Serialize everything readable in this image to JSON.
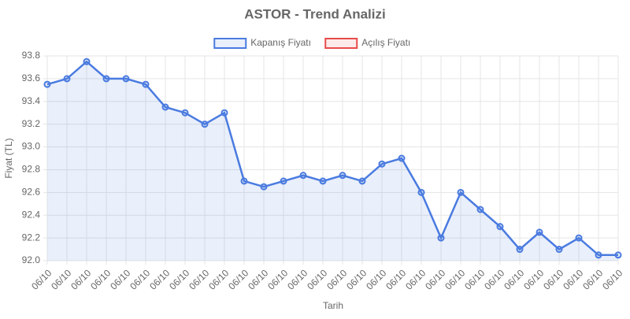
{
  "chart_data": {
    "type": "line",
    "title": "ASTOR - Trend Analizi",
    "x_label": "Tarih",
    "y_label": "Fiyat (TL)",
    "categories": [
      "06/10",
      "06/10",
      "06/10",
      "06/10",
      "06/10",
      "06/10",
      "06/10",
      "06/10",
      "06/10",
      "06/10",
      "06/10",
      "06/10",
      "06/10",
      "06/10",
      "06/10",
      "06/10",
      "06/10",
      "06/10",
      "06/10",
      "06/10",
      "06/10",
      "06/10",
      "06/10",
      "06/10",
      "06/10",
      "06/10",
      "06/10",
      "06/10",
      "06/10",
      "06/10"
    ],
    "series": [
      {
        "name": "Kapanış Fiyatı",
        "color": "#4a7be0",
        "fill": "rgba(74,123,224,0.12)",
        "values": [
          93.55,
          93.6,
          93.75,
          93.6,
          93.6,
          93.55,
          93.35,
          93.3,
          93.2,
          93.3,
          92.7,
          92.65,
          92.7,
          92.75,
          92.7,
          92.75,
          92.7,
          92.85,
          92.9,
          92.6,
          92.2,
          92.6,
          92.45,
          92.3,
          92.1,
          92.25,
          92.1,
          92.2,
          92.05,
          92.05
        ]
      },
      {
        "name": "Açılış Fiyatı",
        "color": "#e84a4a",
        "fill": "rgba(232,74,74,0.12)",
        "values": [
          null,
          null,
          null,
          null,
          null,
          null,
          null,
          null,
          null,
          null,
          null,
          null,
          null,
          null,
          null,
          null,
          null,
          null,
          null,
          null,
          null,
          null,
          null,
          null,
          null,
          null,
          null,
          null,
          null,
          null
        ]
      }
    ],
    "ylim": [
      92,
      93.8
    ],
    "yticks": [
      {
        "value": 92,
        "label": "92.0"
      },
      92.2,
      92.4,
      92.6,
      92.8,
      {
        "value": 93,
        "label": "93.0"
      },
      93.2,
      93.4,
      93.6,
      93.8
    ],
    "grid": true,
    "legend": "top"
  }
}
